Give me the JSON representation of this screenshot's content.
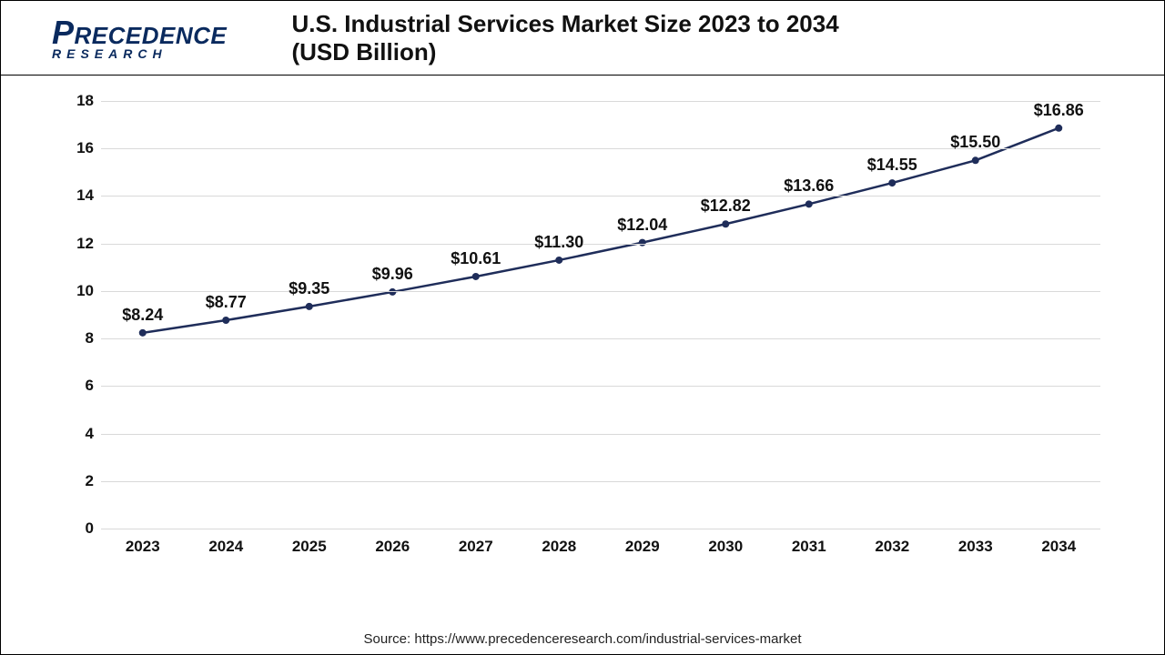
{
  "logo": {
    "top": "PRECEDENCE",
    "bottom": "RESEARCH"
  },
  "title": "U.S. Industrial Services Market Size 2023 to 2034 (USD Billion)",
  "source": "Source: https://www.precedenceresearch.com/industrial-services-market",
  "chart": {
    "type": "line",
    "categories": [
      "2023",
      "2024",
      "2025",
      "2026",
      "2027",
      "2028",
      "2029",
      "2030",
      "2031",
      "2032",
      "2033",
      "2034"
    ],
    "values": [
      8.24,
      8.77,
      9.35,
      9.96,
      10.61,
      11.3,
      12.04,
      12.82,
      13.66,
      14.55,
      15.5,
      16.86
    ],
    "value_labels": [
      "$8.24",
      "$8.77",
      "$9.35",
      "$9.96",
      "$10.61",
      "$11.30",
      "$12.04",
      "$12.82",
      "$13.66",
      "$14.55",
      "$15.50",
      "$16.86"
    ],
    "ylim": [
      0,
      18
    ],
    "ytick_step": 2,
    "yticks": [
      0,
      2,
      4,
      6,
      8,
      10,
      12,
      14,
      16,
      18
    ],
    "line_color": "#1f2d5a",
    "line_width": 2.5,
    "marker_color": "#1f2d5a",
    "marker_radius": 4,
    "grid_color": "#d9d9d9",
    "background_color": "#ffffff",
    "tick_fontsize": 17,
    "tick_fontweight": "700",
    "label_fontsize": 18,
    "label_fontweight": "700",
    "title_fontsize": 26
  }
}
